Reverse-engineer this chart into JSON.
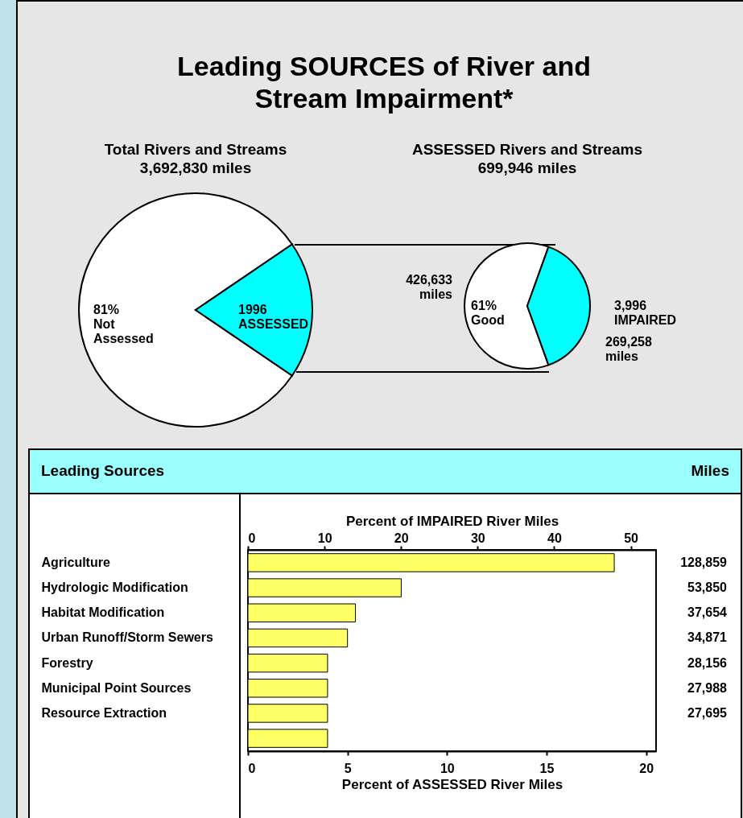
{
  "chart_data": [
    {
      "type": "other",
      "title": "Leading SOURCES of River and Stream Impairment*"
    },
    {
      "type": "pie",
      "title": "Total Rivers and Streams",
      "subtitle": "3,692,830 miles",
      "categories": [
        "Not Assessed",
        "1996 ASSESSED"
      ],
      "values": [
        81,
        19
      ],
      "colors": [
        "#ffffff",
        "#00ffff"
      ],
      "value_labels": [
        "81%",
        null
      ]
    },
    {
      "type": "pie",
      "title": "ASSESSED Rivers and Streams",
      "subtitle": "699,946 miles",
      "categories": [
        "Good",
        "3,996 IMPAIRED"
      ],
      "values": [
        61,
        39
      ],
      "colors": [
        "#ffffff",
        "#00ffff"
      ],
      "value_labels": [
        "61%",
        null
      ],
      "annotations": [
        "426,633 miles",
        "269,258 miles"
      ]
    },
    {
      "type": "bar",
      "orientation": "horizontal",
      "annotations": [
        "Leading Sources",
        "Miles",
        "128,859",
        "53,850",
        "37,654",
        "34,871",
        "28,156",
        "27,988",
        "27,695"
      ],
      "categories": [
        "Agriculture",
        "Hydrologic Modification",
        "Habitat Modification",
        "Urban Runoff/Storm Sewers",
        "Forestry",
        "Municipal Point Sources",
        "Resource Extraction",
        null
      ],
      "values": [
        18.4,
        7.7,
        5.4,
        5.0,
        4.0,
        4.0,
        4.0,
        4.0
      ],
      "color": "#ffff66",
      "xlim": [
        0,
        20.5
      ],
      "xticks": [
        0,
        5,
        10,
        15,
        20
      ],
      "xlabel": "Percent of ASSESSED River Miles",
      "x2lim": [
        0,
        53.3
      ],
      "x2ticks": [
        0,
        10,
        20,
        30,
        40,
        50
      ],
      "x2label": "Percent of IMPAIRED River Miles"
    }
  ]
}
